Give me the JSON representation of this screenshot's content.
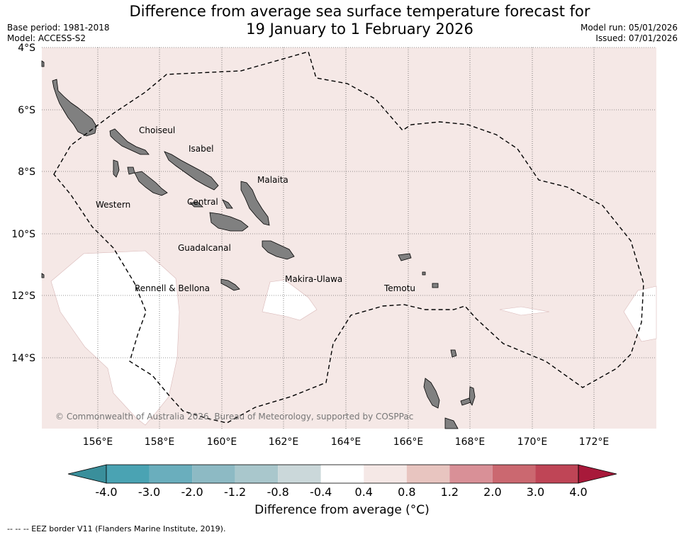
{
  "header": {
    "title_line1": "Difference from average sea surface temperature forecast for",
    "title_line2": "19 January to 1 February 2026",
    "base_period": "Base period: 1981-2018",
    "model": "Model: ACCESS-S2",
    "model_run": "Model run: 05/01/2026",
    "issued": "Issued: 07/01/2026"
  },
  "map": {
    "lat_labels": [
      "4°S",
      "6°S",
      "8°S",
      "10°S",
      "12°S",
      "14°S"
    ],
    "lon_labels": [
      "156°E",
      "158°E",
      "160°E",
      "162°E",
      "164°E",
      "166°E",
      "168°E",
      "170°E",
      "172°E"
    ],
    "background_color": "#f5e8e6",
    "land_color": "#808080",
    "provinces": [
      {
        "name": "Choiseul"
      },
      {
        "name": "Isabel"
      },
      {
        "name": "Malaita"
      },
      {
        "name": "Western"
      },
      {
        "name": "Central"
      },
      {
        "name": "Guadalcanal"
      },
      {
        "name": "Makira-Ulawa"
      },
      {
        "name": "Rennell & Bellona"
      },
      {
        "name": "Temotu"
      }
    ],
    "copyright": "© Commonwealth of Australia 2026, Bureau of Meteorology, supported by COSPPac"
  },
  "colorbar": {
    "title": "Difference from average (°C)",
    "ticks": [
      "-4.0",
      "-3.0",
      "-2.0",
      "-1.2",
      "-0.8",
      "-0.4",
      "0.4",
      "0.8",
      "1.2",
      "2.0",
      "3.0",
      "4.0"
    ],
    "colors": [
      "#3a8f9b",
      "#4aa3b3",
      "#6aaebd",
      "#8dbac4",
      "#a9c7cc",
      "#cbd8da",
      "#ffffff",
      "#f5e8e6",
      "#e8c5c0",
      "#d99097",
      "#cb6870",
      "#bf4556",
      "#a8193a"
    ]
  },
  "footer": {
    "legend": "-- -- -- EEZ border V11 (Flanders Marine Institute, 2019)."
  }
}
